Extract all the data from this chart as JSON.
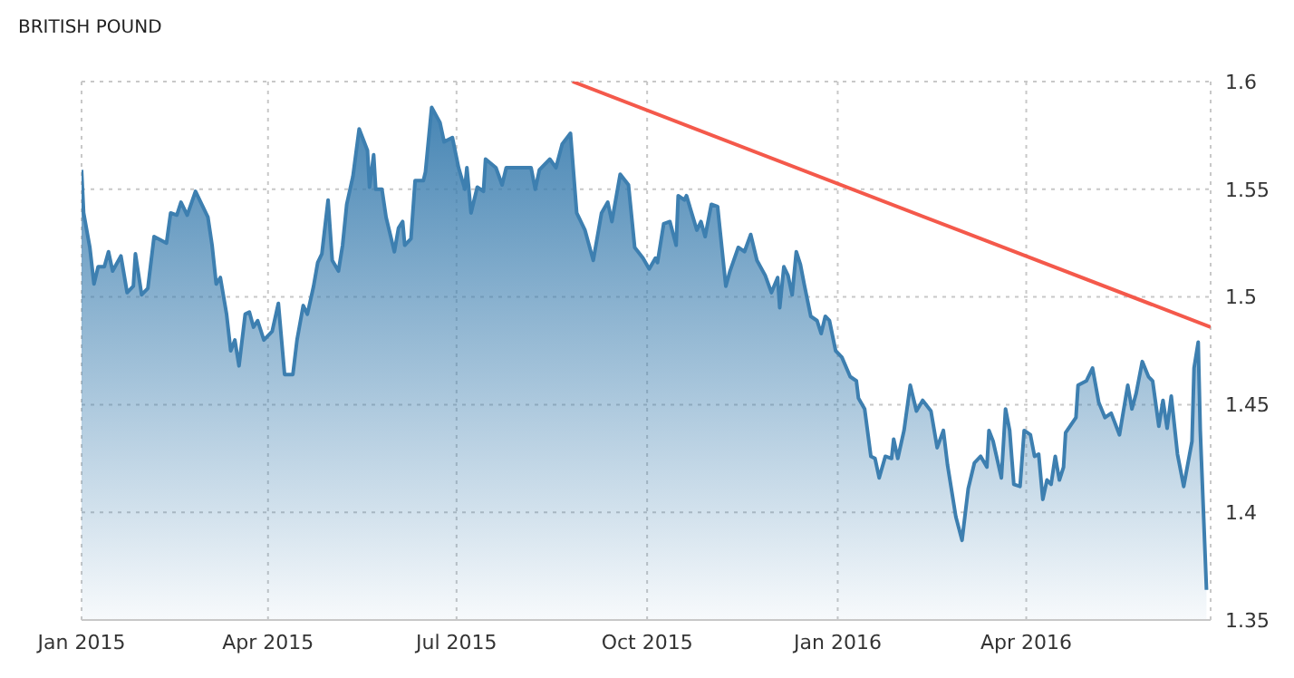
{
  "chart_data": {
    "type": "area",
    "title": "BRITISH POUND",
    "xlim": [
      "2015-01-01",
      "2016-06-29"
    ],
    "xticks": [
      {
        "value": "2015-01-01",
        "label": "Jan 2015"
      },
      {
        "value": "2015-04-01",
        "label": "Apr 2015"
      },
      {
        "value": "2015-07-01",
        "label": "Jul 2015"
      },
      {
        "value": "2015-10-01",
        "label": "Oct 2015"
      },
      {
        "value": "2016-01-01",
        "label": "Jan 2016"
      },
      {
        "value": "2016-04-01",
        "label": "Apr 2016"
      }
    ],
    "ylim": [
      1.35,
      1.6
    ],
    "yticks": [
      1.35,
      1.4,
      1.45,
      1.5,
      1.55,
      1.6
    ],
    "grid": true,
    "series": [
      {
        "color": "#3d7fb0",
        "x": [
          "2015-01-01",
          "2015-01-02",
          "2015-01-05",
          "2015-01-07",
          "2015-01-09",
          "2015-01-12",
          "2015-01-14",
          "2015-01-16",
          "2015-01-20",
          "2015-01-23",
          "2015-01-26",
          "2015-01-27",
          "2015-01-30",
          "2015-02-02",
          "2015-02-05",
          "2015-02-11",
          "2015-02-13",
          "2015-02-16",
          "2015-02-18",
          "2015-02-21",
          "2015-02-25",
          "2015-03-01",
          "2015-03-03",
          "2015-03-05",
          "2015-03-07",
          "2015-03-09",
          "2015-03-12",
          "2015-03-14",
          "2015-03-16",
          "2015-03-18",
          "2015-03-21",
          "2015-03-23",
          "2015-03-25",
          "2015-03-27",
          "2015-03-30",
          "2015-04-03",
          "2015-04-06",
          "2015-04-09",
          "2015-04-13",
          "2015-04-15",
          "2015-04-18",
          "2015-04-20",
          "2015-04-23",
          "2015-04-25",
          "2015-04-27",
          "2015-04-30",
          "2015-05-02",
          "2015-05-05",
          "2015-05-07",
          "2015-05-09",
          "2015-05-12",
          "2015-05-15",
          "2015-05-19",
          "2015-05-20",
          "2015-05-22",
          "2015-05-23",
          "2015-05-26",
          "2015-05-28",
          "2015-06-01",
          "2015-06-03",
          "2015-06-05",
          "2015-06-06",
          "2015-06-09",
          "2015-06-11",
          "2015-06-15",
          "2015-06-16",
          "2015-06-19",
          "2015-06-23",
          "2015-06-25",
          "2015-06-29",
          "2015-07-02",
          "2015-07-05",
          "2015-07-06",
          "2015-07-08",
          "2015-07-11",
          "2015-07-14",
          "2015-07-15",
          "2015-07-20",
          "2015-07-23",
          "2015-07-25",
          "2015-07-30",
          "2015-08-06",
          "2015-08-08",
          "2015-08-10",
          "2015-08-15",
          "2015-08-18",
          "2015-08-21",
          "2015-08-25",
          "2015-08-28",
          "2015-09-01",
          "2015-09-05",
          "2015-09-09",
          "2015-09-12",
          "2015-09-14",
          "2015-09-18",
          "2015-09-22",
          "2015-09-25",
          "2015-09-29",
          "2015-10-02",
          "2015-10-05",
          "2015-10-06",
          "2015-10-09",
          "2015-10-12",
          "2015-10-15",
          "2015-10-16",
          "2015-10-19",
          "2015-10-20",
          "2015-10-25",
          "2015-10-27",
          "2015-10-29",
          "2015-11-01",
          "2015-11-04",
          "2015-11-08",
          "2015-11-10",
          "2015-11-14",
          "2015-11-17",
          "2015-11-20",
          "2015-11-23",
          "2015-11-27",
          "2015-11-30",
          "2015-12-03",
          "2015-12-04",
          "2015-12-06",
          "2015-12-08",
          "2015-12-10",
          "2015-12-12",
          "2015-12-14",
          "2015-12-16",
          "2015-12-19",
          "2015-12-22",
          "2015-12-24",
          "2015-12-26",
          "2015-12-28",
          "2015-12-31",
          "2016-01-03",
          "2016-01-07",
          "2016-01-10",
          "2016-01-11",
          "2016-01-14",
          "2016-01-17",
          "2016-01-19",
          "2016-01-21",
          "2016-01-24",
          "2016-01-27",
          "2016-01-28",
          "2016-01-30",
          "2016-02-02",
          "2016-02-05",
          "2016-02-08",
          "2016-02-11",
          "2016-02-15",
          "2016-02-18",
          "2016-02-21",
          "2016-02-23",
          "2016-02-27",
          "2016-03-01",
          "2016-03-04",
          "2016-03-07",
          "2016-03-10",
          "2016-03-13",
          "2016-03-14",
          "2016-03-16",
          "2016-03-20",
          "2016-03-22",
          "2016-03-24",
          "2016-03-26",
          "2016-03-29",
          "2016-03-31",
          "2016-04-03",
          "2016-04-05",
          "2016-04-07",
          "2016-04-09",
          "2016-04-11",
          "2016-04-13",
          "2016-04-15",
          "2016-04-17",
          "2016-04-19",
          "2016-04-20",
          "2016-04-25",
          "2016-04-26",
          "2016-04-30",
          "2016-05-03",
          "2016-05-06",
          "2016-05-09",
          "2016-05-12",
          "2016-05-16",
          "2016-05-20",
          "2016-05-22",
          "2016-05-24",
          "2016-05-27",
          "2016-05-30",
          "2016-06-01",
          "2016-06-04",
          "2016-06-06",
          "2016-06-08",
          "2016-06-10",
          "2016-06-13",
          "2016-06-16",
          "2016-06-20",
          "2016-06-21",
          "2016-06-23",
          "2016-06-24",
          "2016-06-27"
        ],
        "values": [
          1.559,
          1.539,
          1.523,
          1.506,
          1.514,
          1.514,
          1.521,
          1.512,
          1.519,
          1.502,
          1.505,
          1.52,
          1.501,
          1.504,
          1.528,
          1.525,
          1.539,
          1.538,
          1.544,
          1.538,
          1.549,
          1.541,
          1.537,
          1.524,
          1.506,
          1.509,
          1.492,
          1.475,
          1.48,
          1.468,
          1.492,
          1.493,
          1.486,
          1.489,
          1.48,
          1.484,
          1.497,
          1.464,
          1.464,
          1.48,
          1.496,
          1.492,
          1.505,
          1.516,
          1.52,
          1.545,
          1.517,
          1.512,
          1.524,
          1.543,
          1.556,
          1.578,
          1.568,
          1.551,
          1.566,
          1.55,
          1.55,
          1.537,
          1.521,
          1.532,
          1.535,
          1.524,
          1.527,
          1.554,
          1.554,
          1.558,
          1.588,
          1.581,
          1.572,
          1.574,
          1.56,
          1.55,
          1.56,
          1.539,
          1.551,
          1.549,
          1.564,
          1.56,
          1.552,
          1.56,
          1.56,
          1.56,
          1.55,
          1.559,
          1.564,
          1.56,
          1.571,
          1.576,
          1.539,
          1.531,
          1.517,
          1.539,
          1.544,
          1.535,
          1.557,
          1.552,
          1.523,
          1.518,
          1.513,
          1.518,
          1.516,
          1.534,
          1.535,
          1.524,
          1.547,
          1.545,
          1.547,
          1.531,
          1.535,
          1.528,
          1.543,
          1.542,
          1.505,
          1.512,
          1.523,
          1.521,
          1.529,
          1.517,
          1.51,
          1.502,
          1.509,
          1.495,
          1.514,
          1.51,
          1.501,
          1.521,
          1.515,
          1.505,
          1.491,
          1.489,
          1.483,
          1.491,
          1.489,
          1.475,
          1.472,
          1.463,
          1.461,
          1.453,
          1.448,
          1.426,
          1.425,
          1.416,
          1.426,
          1.425,
          1.434,
          1.425,
          1.438,
          1.459,
          1.447,
          1.452,
          1.447,
          1.43,
          1.438,
          1.422,
          1.398,
          1.387,
          1.411,
          1.423,
          1.426,
          1.421,
          1.438,
          1.433,
          1.416,
          1.448,
          1.438,
          1.413,
          1.412,
          1.438,
          1.436,
          1.426,
          1.427,
          1.406,
          1.415,
          1.413,
          1.426,
          1.415,
          1.421,
          1.437,
          1.444,
          1.459,
          1.461,
          1.467,
          1.451,
          1.444,
          1.446,
          1.436,
          1.459,
          1.448,
          1.455,
          1.47,
          1.463,
          1.461,
          1.44,
          1.452,
          1.439,
          1.454,
          1.427,
          1.412,
          1.433,
          1.467,
          1.479,
          1.438,
          1.364
        ]
      },
      {
        "type": "line",
        "color": "#f4594b",
        "x": [
          "2015-08-26",
          "2016-06-29"
        ],
        "values": [
          1.6,
          1.486
        ]
      }
    ]
  }
}
